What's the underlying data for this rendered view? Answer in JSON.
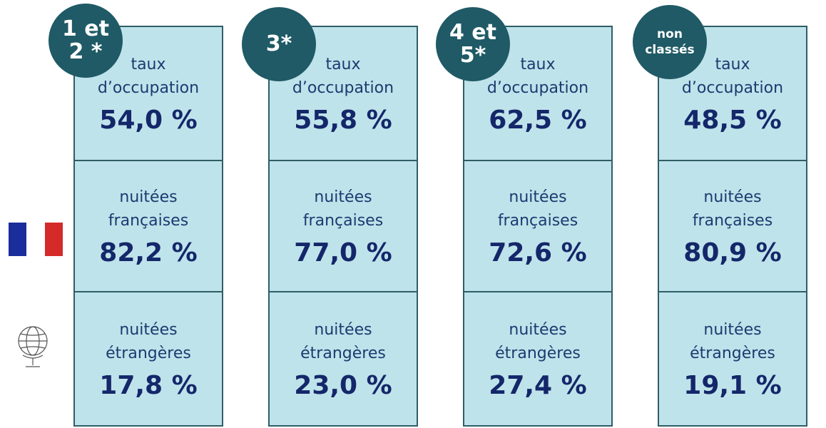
{
  "columns": [
    {
      "badge": [
        "1 et",
        "2 *"
      ],
      "cells": [
        {
          "label": [
            "taux",
            "d’occupation"
          ],
          "value": "54,0 %"
        },
        {
          "label": [
            "nuitées",
            "françaises"
          ],
          "value": "82,2 %"
        },
        {
          "label": [
            "nuitées",
            "étrangères"
          ],
          "value": "17,8 %"
        }
      ]
    },
    {
      "badge": [
        "3*"
      ],
      "cells": [
        {
          "label": [
            "taux",
            "d’occupation"
          ],
          "value": "55,8 %"
        },
        {
          "label": [
            "nuitées",
            "françaises"
          ],
          "value": "77,0 %"
        },
        {
          "label": [
            "nuitées",
            "étrangères"
          ],
          "value": "23,0 %"
        }
      ]
    },
    {
      "badge": [
        "4 et",
        "5*"
      ],
      "cells": [
        {
          "label": [
            "taux",
            "d’occupation"
          ],
          "value": "62,5 %"
        },
        {
          "label": [
            "nuitées",
            "françaises"
          ],
          "value": "72,6 %"
        },
        {
          "label": [
            "nuitées",
            "étrangères"
          ],
          "value": "27,4 %"
        }
      ]
    },
    {
      "badge": [
        "non",
        "classés"
      ],
      "small_badge": true,
      "cells": [
        {
          "label": [
            "taux",
            "d’occupation"
          ],
          "value": "48,5 %"
        },
        {
          "label": [
            "nuitées",
            "françaises"
          ],
          "value": "80,9 %"
        },
        {
          "label": [
            "nuitées",
            "étrangères"
          ],
          "value": "19,1 %"
        }
      ]
    }
  ]
}
